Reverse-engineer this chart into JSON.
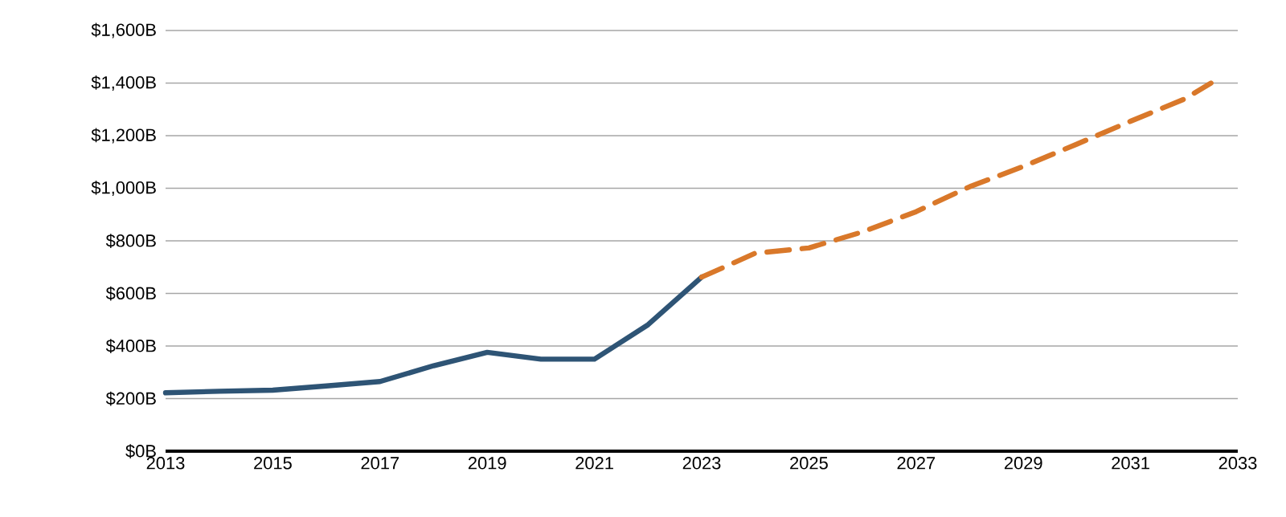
{
  "chart_data": {
    "type": "line",
    "series": [
      {
        "x": [
          2013,
          2014,
          2015,
          2016,
          2017,
          2018,
          2019,
          2020,
          2021,
          2022,
          2023
        ],
        "values": [
          222,
          228,
          232,
          248,
          265,
          325,
          376,
          350,
          350,
          481,
          662
        ],
        "color": "#2e5475",
        "line_style": "solid"
      },
      {
        "x": [
          2023,
          2024,
          2025,
          2026,
          2027,
          2028,
          2029,
          2030,
          2031,
          2032,
          2032.5
        ],
        "values": [
          662,
          753,
          773,
          834,
          911,
          1006,
          1083,
          1168,
          1255,
          1339,
          1400
        ],
        "color": "#d9782a",
        "line_style": "dashed"
      }
    ],
    "xlim": [
      2013,
      2033
    ],
    "ylim": [
      0,
      1600
    ],
    "xticks": [
      2013,
      2015,
      2017,
      2019,
      2021,
      2023,
      2025,
      2027,
      2029,
      2031,
      2033
    ],
    "yticks": [
      {
        "value": 0,
        "label": "$0B"
      },
      {
        "value": 200,
        "label": "$200B"
      },
      {
        "value": 400,
        "label": "$400B"
      },
      {
        "value": 600,
        "label": "$600B"
      },
      {
        "value": 800,
        "label": "$800B"
      },
      {
        "value": 1000,
        "label": "$1,000B"
      },
      {
        "value": 1200,
        "label": "$1,200B"
      },
      {
        "value": 1400,
        "label": "$1,400B"
      },
      {
        "value": 1600,
        "label": "$1,600B"
      }
    ],
    "grid": "y"
  }
}
